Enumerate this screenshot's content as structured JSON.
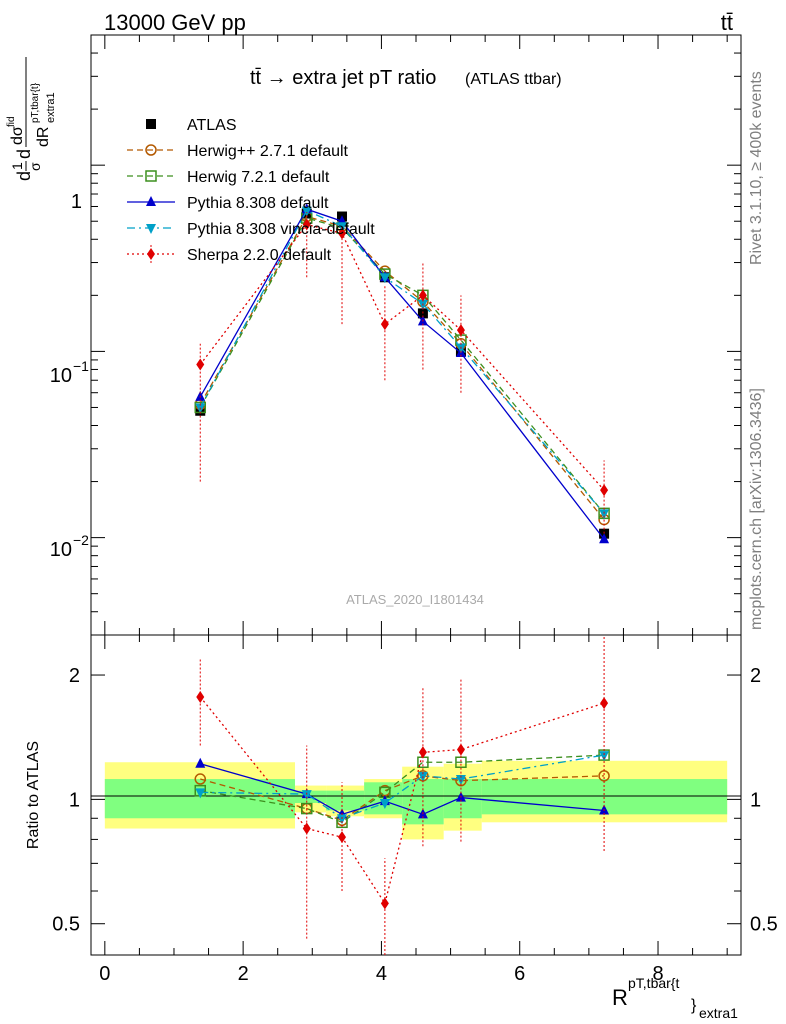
{
  "header": {
    "energy_label": "13000 GeV pp",
    "process_label": "tt̄"
  },
  "side_text": {
    "rivet": "Rivet 3.1.10, ≥ 400k events",
    "mcplots": "mcplots.cern.ch [arXiv:1306.3436]"
  },
  "watermark": "ATLAS_2020_I1801434",
  "chart_data": [
    {
      "type": "scatter",
      "panel": "main",
      "title": "tt̄ → extra jet pT ratio",
      "subtitle": "(ATLAS ttbar)",
      "ylabel": "1/σ dσ/dR extra1 (pT,tbar{t})",
      "yscale": "log",
      "ylim": [
        0.003,
        5
      ],
      "xlim": [
        -0.2,
        9.2
      ],
      "y_tick_labels": [
        "10^-2",
        "10^-1",
        "1"
      ],
      "legend_position": "top-left",
      "x": [
        1.38,
        2.92,
        3.43,
        4.05,
        4.6,
        5.15,
        7.22
      ],
      "series": [
        {
          "name": "ATLAS",
          "color": "#000000",
          "marker": "square-filled",
          "line": "none",
          "values": [
            0.048,
            0.55,
            0.53,
            0.25,
            0.16,
            0.1,
            0.0105
          ]
        },
        {
          "name": "Herwig++ 2.7.1 default",
          "color": "#b35900",
          "marker": "circle-open",
          "line": "dashed",
          "values": [
            0.052,
            0.53,
            0.47,
            0.27,
            0.185,
            0.11,
            0.0125
          ]
        },
        {
          "name": "Herwig 7.2.1 default",
          "color": "#3c8f1e",
          "marker": "square-open",
          "line": "dashed",
          "values": [
            0.05,
            0.52,
            0.46,
            0.26,
            0.2,
            0.115,
            0.0135
          ]
        },
        {
          "name": "Pythia 8.308 default",
          "color": "#0000cc",
          "marker": "triangle-up",
          "line": "solid",
          "values": [
            0.057,
            0.58,
            0.5,
            0.25,
            0.145,
            0.098,
            0.0098
          ]
        },
        {
          "name": "Pythia 8.308 vincia-default",
          "color": "#00a0c8",
          "marker": "triangle-down",
          "line": "dashdot",
          "values": [
            0.05,
            0.57,
            0.47,
            0.25,
            0.18,
            0.105,
            0.0135
          ]
        },
        {
          "name": "Sherpa 2.2.0 default",
          "color": "#e00000",
          "marker": "diamond",
          "line": "dotted",
          "values": [
            0.085,
            0.48,
            0.43,
            0.14,
            0.2,
            0.13,
            0.018
          ],
          "errors_low": [
            0.02,
            0.25,
            0.14,
            0.07,
            0.08,
            0.06,
            0.0105
          ],
          "errors_high": [
            0.11,
            0.56,
            0.47,
            0.225,
            0.3,
            0.2,
            0.026
          ]
        }
      ]
    },
    {
      "type": "scatter",
      "panel": "ratio",
      "ylabel": "Ratio to ATLAS",
      "xlabel": "R extra1 (pT,tbar{t})",
      "yscale": "log",
      "ylim": [
        0.42,
        2.5
      ],
      "xlim": [
        -0.2,
        9.2
      ],
      "y_ticks": [
        0.5,
        1,
        2
      ],
      "x_ticks": [
        0,
        2,
        4,
        6,
        8
      ],
      "reference_line": 1,
      "uncertainty_bands": {
        "bins": [
          [
            0,
            2.75
          ],
          [
            2.75,
            3.2
          ],
          [
            3.2,
            3.75
          ],
          [
            3.75,
            4.3
          ],
          [
            4.3,
            4.9
          ],
          [
            4.9,
            5.45
          ],
          [
            5.45,
            9.0
          ]
        ],
        "green_low": [
          0.9,
          0.98,
          0.94,
          0.92,
          0.87,
          0.9,
          0.92
        ],
        "green_high": [
          1.12,
          1.05,
          1.05,
          1.1,
          1.12,
          1.12,
          1.12
        ],
        "yellow_low": [
          0.85,
          0.93,
          0.91,
          0.9,
          0.8,
          0.84,
          0.88
        ],
        "yellow_high": [
          1.23,
          1.08,
          1.08,
          1.12,
          1.2,
          1.22,
          1.24
        ],
        "green_color": "#80ff80",
        "yellow_color": "#ffff80"
      },
      "x": [
        1.38,
        2.92,
        3.43,
        4.05,
        4.6,
        5.15,
        7.22
      ],
      "series": [
        {
          "name": "Herwig++ 2.7.1 default",
          "color": "#b35900",
          "marker": "circle-open",
          "line": "dashed",
          "values": [
            1.12,
            0.95,
            0.89,
            1.05,
            1.14,
            1.11,
            1.14
          ]
        },
        {
          "name": "Herwig 7.2.1 default",
          "color": "#3c8f1e",
          "marker": "square-open",
          "line": "dashed",
          "values": [
            1.05,
            0.95,
            0.88,
            1.04,
            1.23,
            1.23,
            1.28
          ]
        },
        {
          "name": "Pythia 8.308 default",
          "color": "#0000cc",
          "marker": "triangle-up",
          "line": "solid",
          "values": [
            1.22,
            1.03,
            0.92,
            0.99,
            0.92,
            1.01,
            0.94
          ]
        },
        {
          "name": "Pythia 8.308 vincia-default",
          "color": "#00a0c8",
          "marker": "triangle-down",
          "line": "dashdot",
          "values": [
            1.04,
            1.03,
            0.9,
            0.98,
            1.14,
            1.12,
            1.28
          ]
        },
        {
          "name": "Sherpa 2.2.0 default",
          "color": "#e00000",
          "marker": "diamond",
          "line": "dotted",
          "values": [
            1.77,
            0.85,
            0.81,
            0.56,
            1.3,
            1.32,
            1.71
          ],
          "errors_low": [
            1.35,
            0.46,
            0.6,
            0.42,
            0.77,
            0.79,
            0.75
          ],
          "errors_high": [
            2.2,
            1.35,
            1.1,
            0.72,
            1.87,
            1.95,
            2.5
          ]
        }
      ]
    }
  ]
}
